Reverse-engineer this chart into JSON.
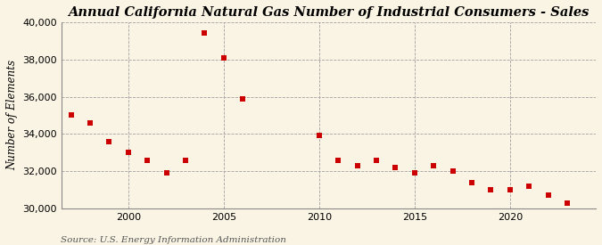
{
  "title": "Annual California Natural Gas Number of Industrial Consumers - Sales",
  "ylabel": "Number of Elements",
  "source": "Source: U.S. Energy Information Administration",
  "background_color": "#faf4e4",
  "plot_bg_color": "#faf4e4",
  "marker_color": "#cc0000",
  "marker": "s",
  "marker_size": 16,
  "years": [
    1997,
    1998,
    1999,
    2000,
    2001,
    2002,
    2003,
    2004,
    2005,
    2006,
    2010,
    2011,
    2012,
    2013,
    2014,
    2015,
    2016,
    2017,
    2018,
    2019,
    2020,
    2021,
    2022,
    2023
  ],
  "values": [
    35000,
    34600,
    33600,
    33000,
    32600,
    31900,
    32600,
    39400,
    38100,
    35900,
    33900,
    32600,
    32300,
    32600,
    32200,
    31900,
    32300,
    32000,
    31400,
    31000,
    31000,
    31200,
    30700,
    30300
  ],
  "xlim": [
    1996.5,
    2024.5
  ],
  "ylim": [
    30000,
    40000
  ],
  "yticks": [
    30000,
    32000,
    34000,
    36000,
    38000,
    40000
  ],
  "xticks": [
    2000,
    2005,
    2010,
    2015,
    2020
  ],
  "grid_color": "#a0a0a0",
  "grid_style": "--",
  "title_fontsize": 10.5,
  "ylabel_fontsize": 8.5,
  "tick_fontsize": 8,
  "source_fontsize": 7.5
}
